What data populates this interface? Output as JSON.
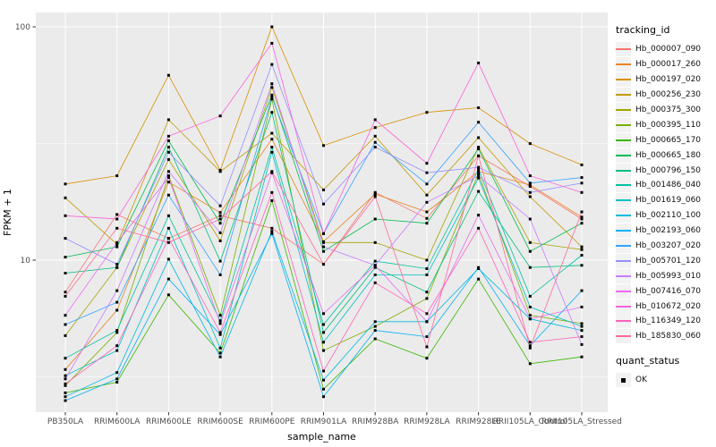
{
  "figure": {
    "background": "#FFFFFF",
    "panel_background": "#EBEBEB",
    "grid_color": "#FFFFFF",
    "tick_color": "#333333",
    "tick_label_color": "#4D4D4D",
    "axis_title_color": "#000000",
    "point_color": "#000000"
  },
  "legend": {
    "tracking_title": "tracking_id",
    "quant_title": "quant_status",
    "quant_items": [
      {
        "label": "OK",
        "marker": "black-square"
      }
    ]
  },
  "chart_data": {
    "type": "line",
    "title": "",
    "xlabel": "sample_name",
    "ylabel": "FPKM + 1",
    "x_categories": [
      "PB350LA",
      "RRIM600LA",
      "RRIM600LE",
      "RRIM600SE",
      "RRIM600PE",
      "RRIM901LA",
      "RRIM928BA",
      "RRIM928LA",
      "RRIM928LE",
      "RRII105LA_Control",
      "RRII105LA_Stressed"
    ],
    "y_scale": "log10",
    "y_major_ticks": [
      10,
      100
    ],
    "y_major_tick_labels": [
      "10",
      "100"
    ],
    "y_minor_ticks": [
      3.162,
      31.62
    ],
    "ylim": [
      2.2,
      120
    ],
    "grid": true,
    "legend_position": "right",
    "marker": "square",
    "series": [
      {
        "name": "Hb_000007_090",
        "color": "#F8766D",
        "values": [
          7.3,
          15.7,
          12.4,
          15.5,
          13.7,
          9.6,
          19.5,
          15.1,
          28,
          20.7,
          15.0
        ]
      },
      {
        "name": "Hb_000017_260",
        "color": "#E88526",
        "values": [
          3.4,
          6.1,
          21.6,
          16.0,
          33,
          12.0,
          19.2,
          16.1,
          24,
          21.0,
          15.3
        ]
      },
      {
        "name": "Hb_000197_020",
        "color": "#D89000",
        "values": [
          21.2,
          23.0,
          62,
          24.3,
          100,
          31,
          37,
          43,
          45,
          31.6,
          25.6
        ]
      },
      {
        "name": "Hb_000256_230",
        "color": "#C09B00",
        "values": [
          18.5,
          11.7,
          40,
          24.0,
          35,
          20,
          34,
          19.0,
          33.5,
          18.7,
          11.4
        ]
      },
      {
        "name": "Hb_000375_300",
        "color": "#A3A500",
        "values": [
          4.75,
          9.3,
          27,
          12.1,
          55,
          11.9,
          11.9,
          10.0,
          30.5,
          11.9,
          11.1
        ]
      },
      {
        "name": "Hb_000395_110",
        "color": "#7CAE00",
        "values": [
          2.9,
          4.9,
          23,
          5.8,
          49,
          4.1,
          5.2,
          6.85,
          23.5,
          5.8,
          5.35
        ]
      },
      {
        "name": "Hb_000665_170",
        "color": "#39B600",
        "values": [
          2.7,
          3.0,
          7.1,
          4.0,
          18,
          2.8,
          4.6,
          3.8,
          8.3,
          3.6,
          3.85
        ]
      },
      {
        "name": "Hb_000665_180",
        "color": "#00BB4E",
        "values": [
          10.3,
          11.4,
          32.5,
          14.4,
          51,
          10.9,
          15.0,
          14.4,
          30,
          10.9,
          14.4
        ]
      },
      {
        "name": "Hb_000796_150",
        "color": "#00BF7D",
        "values": [
          8.8,
          9.3,
          30.5,
          9.9,
          43,
          4.9,
          9.3,
          7.3,
          19.7,
          9.3,
          9.5
        ]
      },
      {
        "name": "Hb_001486_040",
        "color": "#00C1A3",
        "values": [
          3.8,
          5.0,
          15.5,
          5.5,
          30.5,
          5.3,
          9.9,
          9.2,
          24.5,
          7.0,
          10.5
        ]
      },
      {
        "name": "Hb_001619_060",
        "color": "#00BFC4",
        "values": [
          3.2,
          4.1,
          13.7,
          4.2,
          29,
          4.45,
          8.65,
          8.65,
          22.5,
          6.3,
          5.2
        ]
      },
      {
        "name": "Hb_002110_100",
        "color": "#00BAE0",
        "values": [
          2.6,
          3.3,
          10.1,
          3.85,
          13.3,
          3.06,
          5.45,
          5.45,
          9.2,
          5.6,
          5.0
        ]
      },
      {
        "name": "Hb_002193_060",
        "color": "#00B0F6",
        "values": [
          2.5,
          3.1,
          8.3,
          4.8,
          13.0,
          2.6,
          5.0,
          4.7,
          9.3,
          4.3,
          7.4
        ]
      },
      {
        "name": "Hb_003207_020",
        "color": "#35A2FF",
        "values": [
          5.3,
          6.6,
          19.0,
          8.65,
          50,
          13.0,
          32,
          21.2,
          39,
          21.4,
          22.6
        ]
      },
      {
        "name": "Hb_005701_120",
        "color": "#9590FF",
        "values": [
          12.4,
          9.6,
          29,
          17.1,
          69,
          17.4,
          30.5,
          23.7,
          25,
          19.5,
          21.4
        ]
      },
      {
        "name": "Hb_005993_010",
        "color": "#C77CFF",
        "values": [
          3.1,
          7.4,
          24,
          13.1,
          57,
          11.4,
          9.5,
          17.7,
          23,
          15.0,
          4.35
        ]
      },
      {
        "name": "Hb_007416_070",
        "color": "#E76BF3",
        "values": [
          5.8,
          11.9,
          22.6,
          5.35,
          23.7,
          5.9,
          9.5,
          5.45,
          15.6,
          5.6,
          6.3
        ]
      },
      {
        "name": "Hb_010672_020",
        "color": "#FA62DB",
        "values": [
          15.5,
          15.0,
          34,
          41.5,
          85,
          13.0,
          40,
          26,
          70,
          23.0,
          19.5
        ]
      },
      {
        "name": "Hb_116349_120",
        "color": "#FF62BC",
        "values": [
          2.95,
          4.3,
          12.4,
          4.9,
          19.5,
          3.35,
          8.0,
          5.9,
          13.7,
          4.45,
          4.7
        ]
      },
      {
        "name": "Hb_185830_060",
        "color": "#FF6A98",
        "values": [
          7.0,
          13.7,
          11.9,
          15.0,
          24,
          9.6,
          18.7,
          4.25,
          28,
          4.2,
          16.1
        ]
      }
    ]
  }
}
